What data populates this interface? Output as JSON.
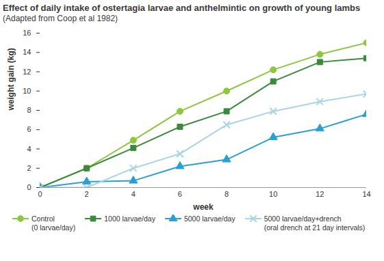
{
  "chart_data": {
    "type": "line",
    "title": "Effect of daily intake of ostertagia larvae and anthelmintic on growth of young lambs",
    "subtitle": "(Adapted from Coop et al 1982)",
    "x_label": "week",
    "y_label": "weight gain (kg)",
    "x": [
      0,
      2,
      4,
      6,
      8,
      10,
      12,
      14
    ],
    "xlim": [
      0,
      14
    ],
    "xticks": [
      0,
      2,
      4,
      6,
      8,
      10,
      12,
      14
    ],
    "ylim": [
      0,
      16
    ],
    "yticks": [
      0,
      2,
      4,
      6,
      8,
      10,
      12,
      14,
      16
    ],
    "grid": false,
    "legend": "bottom",
    "series": [
      {
        "name": "Control (0 larvae/day)",
        "color": "#8dc63f",
        "marker": "circle",
        "values": [
          0,
          2,
          4.9,
          7.9,
          10,
          12.2,
          13.8,
          15
        ]
      },
      {
        "name": "1000 larvae/day",
        "color": "#3a8a3c",
        "marker": "square",
        "values": [
          0,
          2,
          4.1,
          6.3,
          7.9,
          11,
          13,
          13.4
        ]
      },
      {
        "name": "5000 larvae/day",
        "color": "#2a9fd6",
        "marker": "triangle",
        "values": [
          0,
          0.6,
          0.7,
          2.2,
          2.9,
          5.2,
          6.1,
          7.6
        ]
      },
      {
        "name": "5000 larvae/day+drench (oral drench at 21 day intervals)",
        "color": "#a8d4e4",
        "marker": "times",
        "values": [
          0,
          0,
          2,
          3.5,
          6.5,
          7.9,
          8.9,
          9.7
        ]
      }
    ]
  }
}
